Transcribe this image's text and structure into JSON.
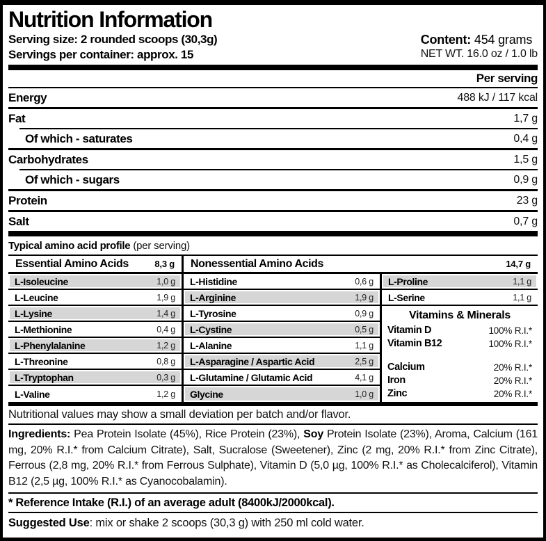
{
  "header": {
    "title": "Nutrition Information",
    "serving_size": "Serving size: 2 rounded scoops (30,3g)",
    "servings_per_container": "Servings per container: approx. 15",
    "content_label": "Content:",
    "content_value": " 454 grams",
    "net_wt": "NET WT. 16.0 oz / 1.0 lb"
  },
  "per_serving": {
    "column_header": "Per serving",
    "rows": [
      {
        "label": "Energy",
        "value": "488 kJ / 117 kcal"
      },
      {
        "label": "Fat",
        "value": "1,7 g"
      },
      {
        "label": "Of which - saturates",
        "value": "0,4 g"
      },
      {
        "label": "Carbohydrates",
        "value": "1,5 g"
      },
      {
        "label": "Of which - sugars",
        "value": "0,9 g"
      },
      {
        "label": "Protein",
        "value": "23 g"
      },
      {
        "label": "Salt",
        "value": "0,7 g"
      }
    ]
  },
  "amino_profile": {
    "title_bold": "Typical amino acid profile",
    "title_note": "(per serving)",
    "essential": {
      "header": "Essential Amino Acids",
      "total": "8,3 g",
      "rows": [
        {
          "name": "L-Isoleucine",
          "value": "1,0 g"
        },
        {
          "name": "L-Leucine",
          "value": "1,9 g"
        },
        {
          "name": "L-Lysine",
          "value": "1,4 g"
        },
        {
          "name": "L-Methionine",
          "value": "0,4 g"
        },
        {
          "name": "L-Phenylalanine",
          "value": "1,2 g"
        },
        {
          "name": "L-Threonine",
          "value": "0,8 g"
        },
        {
          "name": "L-Tryptophan",
          "value": "0,3 g"
        },
        {
          "name": "L-Valine",
          "value": "1,2 g"
        }
      ]
    },
    "nonessential": {
      "header": "Nonessential Amino Acids",
      "total": "14,7 g",
      "rows_middle": [
        {
          "name": "L-Histidine",
          "value": "0,6 g"
        },
        {
          "name": "L-Arginine",
          "value": "1,9 g"
        },
        {
          "name": "L-Tyrosine",
          "value": "0,9 g"
        },
        {
          "name": "L-Cystine",
          "value": "0,5 g"
        },
        {
          "name": "L-Alanine",
          "value": "1,1 g"
        },
        {
          "name": "L-Asparagine / Aspartic Acid",
          "value": "2,5 g"
        },
        {
          "name": "L-Glutamine / Glutamic Acid",
          "value": "4,1 g"
        },
        {
          "name": "Glycine",
          "value": "1,0 g"
        }
      ],
      "rows_right": [
        {
          "name": "L-Proline",
          "value": "1,1 g"
        },
        {
          "name": "L-Serine",
          "value": "1,1 g"
        }
      ]
    },
    "vitamins": {
      "header": "Vitamins & Minerals",
      "group1": [
        {
          "name": "Vitamin D",
          "value": "100% R.I.*"
        },
        {
          "name": "Vitamin B12",
          "value": "100% R.I.*"
        }
      ],
      "group2": [
        {
          "name": "Calcium",
          "value": "20% R.I.*"
        },
        {
          "name": "Iron",
          "value": "20% R.I.*"
        },
        {
          "name": "Zinc",
          "value": "20% R.I.*"
        }
      ]
    }
  },
  "notes": {
    "deviation": "Nutritional values may show a small deviation per batch and/or flavor.",
    "ingredients_label": "Ingredients:",
    "ingredients_part1": " Pea Protein Isolate (45%), Rice Protein (23%), ",
    "ingredients_soy": "Soy",
    "ingredients_part2": " Protein Isolate (23%), Aroma, Calcium (161 mg, 20% R.I.* from Calcium Citrate), Salt, Sucralose (Sweetener), Zinc (2 mg, 20% R.I.* from Zinc Citrate), Ferrous (2,8 mg, 20% R.I.* from Ferrous Sulphate), Vitamin D (5,0 µg, 100% R.I.* as Cholecalciferol), Vitamin B12 (2,5 µg, 100% R.I.* as Cyanocobalamin).",
    "reference_intake": "* Reference Intake (R.I.) of an average adult (8400kJ/2000kcal).",
    "suggested_use_label": "Suggested Use",
    "suggested_use_text": ": mix or shake 2 scoops (30,3 g) with 250 ml cold water."
  },
  "colors": {
    "background": "#ffffff",
    "text": "#000000",
    "row_alt": "#d6d6d6",
    "border": "#000000"
  }
}
